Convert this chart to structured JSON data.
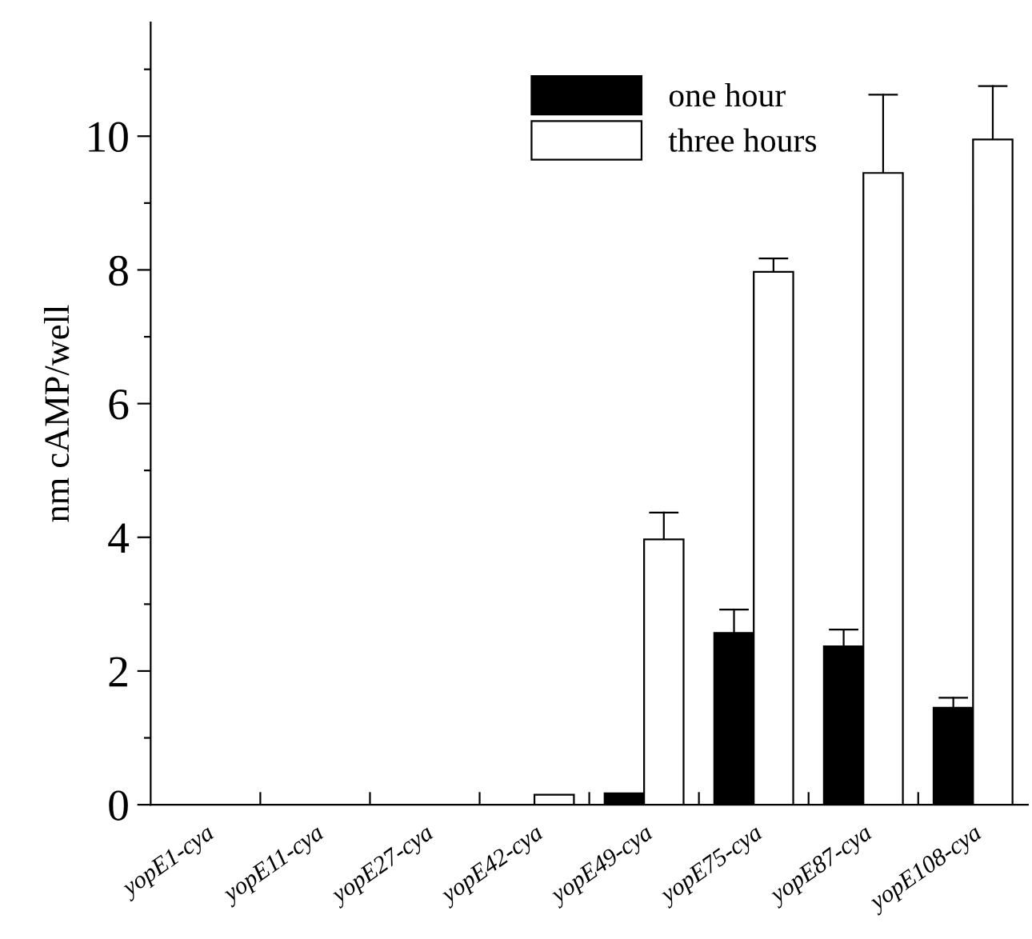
{
  "chart_data": {
    "type": "bar",
    "ylabel": "nm cAMP/well",
    "categories": [
      "yopE1-cya",
      "yopE11-cya",
      "yopE27-cya",
      "yopE42-cya",
      "yopE49-cya",
      "yopE75-cya",
      "yopE87-cya",
      "yopE108-cya"
    ],
    "series": [
      {
        "name": "one hour",
        "color": "#000000",
        "values": [
          null,
          null,
          null,
          null,
          0.17,
          2.57,
          2.37,
          1.45
        ],
        "errors": [
          null,
          null,
          null,
          null,
          null,
          [
            2.57,
            2.92
          ],
          [
            2.37,
            2.62
          ],
          [
            1.45,
            1.6
          ]
        ]
      },
      {
        "name": "three hours",
        "color": "#ffffff",
        "values": [
          null,
          null,
          null,
          0.15,
          3.97,
          7.97,
          9.45,
          9.95
        ],
        "errors": [
          null,
          null,
          null,
          null,
          [
            3.97,
            4.37
          ],
          [
            7.97,
            8.17
          ],
          [
            9.45,
            10.62
          ],
          [
            9.95,
            10.75
          ]
        ]
      }
    ],
    "ylim": [
      0,
      11.7
    ],
    "yticks": [
      0,
      {
        "value": 1,
        "label": null
      },
      2,
      {
        "value": 3,
        "label": null
      },
      4,
      {
        "value": 5,
        "label": null
      },
      6,
      {
        "value": 7,
        "label": null
      },
      8,
      {
        "value": 9,
        "label": null
      },
      10,
      {
        "value": 11,
        "label": null
      }
    ],
    "grid": false,
    "legend": "top"
  }
}
